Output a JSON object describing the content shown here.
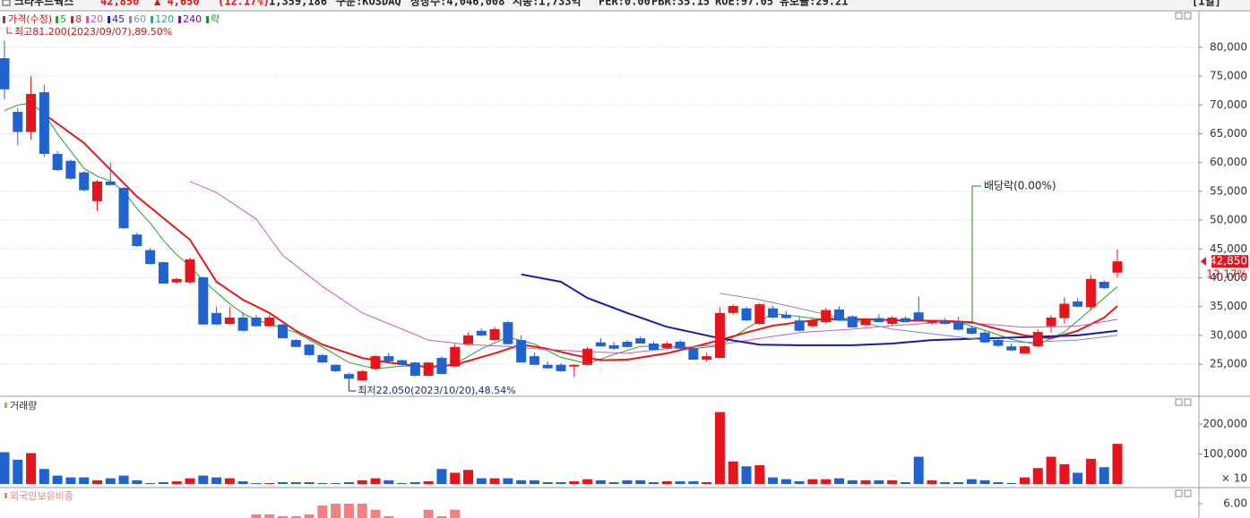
{
  "header": {
    "stock": "크라우드웍스",
    "price": "42,850",
    "change": "▲ 4,650",
    "change_pct": "(12.17%)",
    "volume": "1,359,186",
    "market": "구분:KOSDAQ",
    "shares": "상장수:4,046,008",
    "market_cap": "시총:1,733억",
    "per": "PER:0.00",
    "pbr": "PBR:35.15",
    "roe": "ROE:97.05",
    "reserve": "유보율:29.21",
    "period": "[1일]"
  },
  "chart_data": [
    {
      "type": "candlestick",
      "legend_title": "가격(수정)",
      "categories": [
        null,
        null,
        null,
        null,
        null,
        null,
        null,
        null,
        null,
        null,
        null,
        null,
        null,
        null,
        null,
        null,
        null,
        null,
        null,
        null,
        null,
        null,
        null,
        null,
        null,
        null,
        null,
        null,
        null,
        null,
        null,
        null,
        null,
        null,
        null,
        null,
        null,
        null,
        null,
        null,
        null,
        null,
        null,
        null,
        null,
        null,
        null,
        null,
        null,
        null,
        null,
        null,
        null,
        null,
        null,
        null,
        null,
        null,
        null,
        null,
        null,
        null,
        null,
        null,
        null,
        null,
        null,
        null,
        null,
        null,
        null,
        null,
        null,
        null,
        null,
        null,
        null,
        null,
        null,
        null,
        null,
        null,
        null,
        null,
        null
      ],
      "open": [
        78100,
        68800,
        65300,
        72200,
        61500,
        60300,
        58300,
        53300,
        56700,
        55600,
        47500,
        44800,
        42700,
        39200,
        39200,
        40100,
        33900,
        32000,
        33100,
        33100,
        31600,
        31900,
        29200,
        28400,
        26600,
        24900,
        23300,
        22200,
        24200,
        26400,
        25700,
        25300,
        23000,
        26100,
        24600,
        28500,
        30800,
        29200,
        32300,
        29200,
        26400,
        24900,
        24900,
        24600,
        24900,
        28800,
        28300,
        28900,
        29500,
        28600,
        27800,
        28900,
        27700,
        25800,
        26100,
        33900,
        34700,
        32000,
        34700,
        33600,
        32600,
        31600,
        32300,
        34500,
        33300,
        31800,
        33000,
        32000,
        33000,
        34000,
        32200,
        32500,
        32300,
        31300,
        30500,
        29200,
        28100,
        26900,
        28100,
        31600,
        33000,
        35900,
        34900,
        39300,
        40900
      ],
      "high": [
        81200,
        69500,
        75000,
        73500,
        62000,
        60500,
        58500,
        57000,
        60000,
        55800,
        47800,
        45200,
        42800,
        40000,
        43500,
        40200,
        35000,
        35000,
        34000,
        33500,
        33500,
        32000,
        29400,
        28500,
        26800,
        25000,
        23500,
        24000,
        26600,
        27000,
        25800,
        25400,
        25400,
        26400,
        28500,
        30500,
        31200,
        31500,
        32500,
        30000,
        27000,
        25500,
        25200,
        25000,
        28000,
        29500,
        28900,
        29200,
        29800,
        28900,
        29000,
        29200,
        28000,
        27000,
        34900,
        35400,
        35000,
        35600,
        35100,
        34300,
        33200,
        33000,
        34800,
        35000,
        33500,
        33000,
        33700,
        33400,
        33300,
        36800,
        32700,
        33000,
        33200,
        31700,
        30800,
        29600,
        28600,
        28200,
        31100,
        33500,
        36600,
        36500,
        40500,
        39500,
        44900
      ],
      "low": [
        71000,
        63000,
        64000,
        61000,
        58500,
        57000,
        55000,
        51700,
        56000,
        48500,
        45400,
        42300,
        39000,
        39000,
        39000,
        31800,
        31800,
        31900,
        30700,
        31500,
        31500,
        29500,
        28000,
        26500,
        25300,
        23700,
        22050,
        22200,
        24000,
        25400,
        24800,
        22900,
        22900,
        23300,
        24500,
        28400,
        29900,
        29000,
        28400,
        25300,
        24800,
        24200,
        23700,
        22800,
        24800,
        28100,
        27500,
        27900,
        28600,
        27500,
        27700,
        27600,
        25800,
        25500,
        26000,
        33600,
        32500,
        31800,
        33000,
        32900,
        30700,
        31400,
        32000,
        32500,
        31400,
        31600,
        32300,
        31700,
        32300,
        32600,
        31800,
        31900,
        30900,
        30200,
        28700,
        28000,
        27300,
        26800,
        28000,
        30500,
        32000,
        34900,
        34500,
        38100,
        40000
      ],
      "close": [
        72700,
        65300,
        71900,
        61500,
        58700,
        57200,
        55200,
        56700,
        56100,
        48600,
        45500,
        42400,
        39000,
        39800,
        43200,
        31900,
        31900,
        33100,
        30800,
        31600,
        33100,
        29500,
        28000,
        26600,
        25300,
        23800,
        22500,
        23800,
        26400,
        25500,
        24900,
        23000,
        25300,
        23300,
        28000,
        30000,
        30000,
        31100,
        28500,
        25300,
        24900,
        24300,
        23800,
        24900,
        27700,
        28100,
        27700,
        28000,
        28600,
        27500,
        28600,
        27700,
        25800,
        26400,
        33900,
        35100,
        32600,
        35400,
        33100,
        33000,
        30800,
        32600,
        34400,
        32600,
        31400,
        32800,
        32300,
        33100,
        32300,
        32700,
        32400,
        32000,
        31000,
        30300,
        28800,
        28200,
        27400,
        28100,
        30600,
        33100,
        35500,
        35000,
        39800,
        38200,
        42850
      ],
      "up_color": "#e8141c",
      "down_color": "#1f62d0",
      "ylim": [
        19900,
        85100
      ],
      "yticks": [
        {
          "value": 25000,
          "label": "25,000"
        },
        {
          "value": 30000,
          "label": "30,000"
        },
        {
          "value": 35000,
          "label": "35,000"
        },
        {
          "value": 40000,
          "label": "40,000"
        },
        {
          "value": 45000,
          "label": "45,000"
        },
        {
          "value": 50000,
          "label": "50,000"
        },
        {
          "value": 55000,
          "label": "55,000"
        },
        {
          "value": 60000,
          "label": "60,000"
        },
        {
          "value": 65000,
          "label": "65,000"
        },
        {
          "value": 70000,
          "label": "70,000"
        },
        {
          "value": 75000,
          "label": "75,000"
        },
        {
          "value": 80000,
          "label": "80,000"
        }
      ],
      "grid": true,
      "series": [
        {
          "name": "5",
          "color": "#22a022",
          "width": 1,
          "x": [
            0,
            1,
            2,
            3,
            4,
            5,
            6,
            7,
            8,
            9,
            10,
            11,
            12,
            13,
            14,
            15,
            16,
            17,
            18,
            19,
            20,
            22,
            24,
            26,
            28,
            30,
            32,
            34,
            36,
            38,
            40,
            42,
            44,
            46,
            48,
            50,
            52,
            54,
            56,
            58,
            60,
            62,
            64,
            66,
            68,
            70,
            72,
            74,
            76,
            78,
            80,
            82,
            84
          ],
          "values": [
            69000,
            70000,
            70300,
            68500,
            65000,
            62000,
            59000,
            57600,
            56800,
            55000,
            52000,
            49500,
            46500,
            44000,
            42000,
            39500,
            37500,
            35500,
            33800,
            32700,
            32000,
            30500,
            28000,
            25300,
            24200,
            24700,
            24600,
            25000,
            27700,
            29700,
            28500,
            26200,
            25100,
            26700,
            28100,
            28200,
            27700,
            28200,
            31200,
            33800,
            33300,
            32700,
            32600,
            32700,
            32600,
            32600,
            32300,
            30900,
            29300,
            28400,
            30600,
            34500,
            38500
          ]
        },
        {
          "name": "8",
          "color": "#e41a1a",
          "width": 2,
          "x": [
            3,
            6,
            10,
            14,
            16,
            18,
            20,
            22,
            24,
            27,
            29,
            32,
            34,
            37,
            39,
            41,
            43,
            45,
            47,
            50,
            52,
            54,
            56,
            58,
            60,
            62,
            65,
            68,
            71,
            73,
            75,
            77,
            79,
            81,
            83,
            84
          ],
          "values": [
            68400,
            63400,
            54100,
            46600,
            39300,
            36200,
            33900,
            30800,
            28400,
            26100,
            25300,
            24500,
            24900,
            26900,
            28400,
            27700,
            26600,
            25700,
            25800,
            26900,
            28000,
            29200,
            30500,
            31700,
            32300,
            32900,
            32800,
            32600,
            32500,
            32300,
            31100,
            30000,
            29500,
            30800,
            33100,
            35100
          ]
        },
        {
          "name": "20",
          "color": "#c45cc0",
          "width": 1,
          "x": [
            14,
            16,
            19,
            21,
            24,
            27,
            30,
            32,
            35,
            38,
            40,
            44,
            47,
            50,
            54,
            57,
            60,
            64,
            67,
            71,
            74,
            77,
            81,
            84
          ],
          "values": [
            56700,
            54800,
            50200,
            43900,
            38500,
            33900,
            31100,
            29200,
            28400,
            28100,
            27700,
            27200,
            26900,
            27700,
            28400,
            29500,
            30500,
            31100,
            31700,
            32300,
            32000,
            31400,
            31600,
            32800
          ]
        },
        {
          "name": "45",
          "color": "#1a1aa8",
          "width": 2,
          "x": [
            39,
            42,
            44,
            47,
            50,
            54,
            57,
            60,
            64,
            67,
            70,
            74,
            77,
            81,
            84
          ],
          "values": [
            40600,
            39300,
            36500,
            33900,
            31500,
            29500,
            28400,
            28300,
            28300,
            28600,
            29200,
            29500,
            29700,
            30000,
            30800
          ]
        },
        {
          "name": "60",
          "color": "#7f8fa8",
          "width": 1,
          "x": [
            54,
            57,
            60,
            64,
            67,
            71,
            74,
            77,
            81,
            84
          ],
          "values": [
            37300,
            36200,
            34700,
            32600,
            31100,
            30000,
            29200,
            28800,
            29200,
            30000
          ]
        },
        {
          "name": "120",
          "color": "#2fa0a0"
        },
        {
          "name": "240",
          "color": "#8000c0"
        }
      ],
      "marker_legend": {
        "name": "락",
        "color": "#1a8a1a"
      },
      "annotations": [
        {
          "text": "최고81,200(2023/09/07),89.50%",
          "color": "#d01010"
        },
        {
          "text": "최저22,050(2023/10/20),48.54%",
          "color": "#1a2a80"
        },
        {
          "text": "배당락(0.00%)",
          "color": "#222222"
        }
      ],
      "last_price": {
        "value": 42850,
        "label": "42,850"
      },
      "last_change": "12.17%"
    },
    {
      "type": "bar",
      "title": "거래량",
      "title_color": "#e8a020",
      "unit": "× 10",
      "values": [
        106000,
        81000,
        103000,
        50000,
        28000,
        22000,
        22000,
        12500,
        19000,
        28000,
        12500,
        3000,
        6000,
        9000,
        19000,
        28000,
        22000,
        19000,
        9000,
        3000,
        3000,
        6000,
        6000,
        6000,
        3000,
        3000,
        6000,
        12500,
        19000,
        12500,
        3000,
        6000,
        9000,
        50000,
        37500,
        47000,
        19000,
        19000,
        19000,
        12500,
        12500,
        6000,
        6000,
        9000,
        16000,
        12500,
        6000,
        12500,
        12500,
        6000,
        9000,
        9000,
        9000,
        6000,
        240000,
        75000,
        59000,
        62500,
        22000,
        16000,
        9000,
        16000,
        16000,
        19000,
        12500,
        12500,
        12500,
        12500,
        6000,
        91000,
        12500,
        6000,
        6000,
        16000,
        12500,
        6000,
        3000,
        22000,
        53000,
        91000,
        66000,
        37500,
        84000,
        56000,
        134000
      ],
      "ylim": [
        0,
        277600
      ],
      "yticks": [
        {
          "value": 100000,
          "label": "100,000"
        },
        {
          "value": 200000,
          "label": "200,000"
        }
      ]
    },
    {
      "type": "bar",
      "title": "외국인보유비중",
      "title_color": "#f08080",
      "color": "#f28080",
      "x": [
        19,
        20,
        21,
        22,
        23,
        24,
        25,
        26,
        27,
        28,
        29,
        32,
        33,
        34
      ],
      "values": [
        5.7,
        5.7,
        5.65,
        5.65,
        5.7,
        5.95,
        6.0,
        6.0,
        6.0,
        5.83,
        5.65,
        5.83,
        5.65,
        5.83
      ],
      "ylim": [
        5.6,
        6.35
      ],
      "yticks": [
        {
          "value": 6,
          "label": "6.00"
        }
      ]
    }
  ]
}
